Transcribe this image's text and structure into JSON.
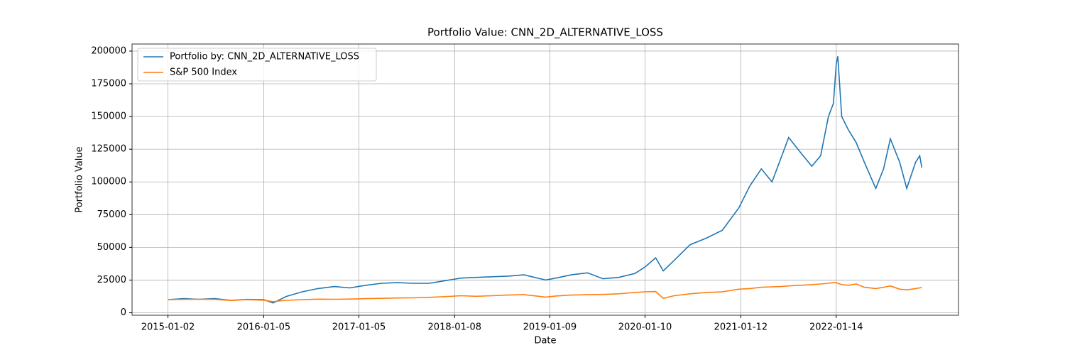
{
  "chart_data": {
    "type": "line",
    "title": "Portfolio Value: CNN_2D_ALTERNATIVE_LOSS",
    "xlabel": "Date",
    "ylabel": "Portfolio Value",
    "x": [
      "2015-01-02",
      "2015-03-02",
      "2015-05-01",
      "2015-07-01",
      "2015-09-01",
      "2015-11-02",
      "2016-01-05",
      "2016-02-10",
      "2016-04-01",
      "2016-06-01",
      "2016-08-01",
      "2016-10-03",
      "2016-12-01",
      "2017-02-01",
      "2017-04-03",
      "2017-06-01",
      "2017-08-01",
      "2017-10-02",
      "2017-12-01",
      "2018-02-01",
      "2018-04-02",
      "2018-06-01",
      "2018-08-01",
      "2018-10-01",
      "2018-12-24",
      "2019-02-01",
      "2019-04-01",
      "2019-06-03",
      "2019-08-01",
      "2019-10-01",
      "2019-12-02",
      "2020-01-10",
      "2020-02-20",
      "2020-03-20",
      "2020-05-01",
      "2020-07-01",
      "2020-09-01",
      "2020-11-02",
      "2021-01-04",
      "2021-02-16",
      "2021-04-01",
      "2021-05-12",
      "2021-06-15",
      "2021-07-15",
      "2021-09-01",
      "2021-10-12",
      "2021-11-15",
      "2021-12-15",
      "2022-01-03",
      "2022-01-14",
      "2022-01-20",
      "2022-02-04",
      "2022-03-01",
      "2022-04-01",
      "2022-05-02",
      "2022-06-15",
      "2022-07-15",
      "2022-08-10",
      "2022-09-15",
      "2022-10-12",
      "2022-11-15",
      "2022-12-01",
      "2022-12-09"
    ],
    "series": [
      {
        "name": "Portfolio by: CNN_2D_ALTERNATIVE_LOSS",
        "color": "#1f77b4",
        "values": [
          10000,
          10800,
          10300,
          10800,
          9500,
          10200,
          10000,
          7500,
          12500,
          16000,
          18500,
          20000,
          19000,
          21000,
          22500,
          23000,
          22500,
          22500,
          24500,
          26500,
          27000,
          27500,
          28000,
          29000,
          25000,
          26500,
          29000,
          30500,
          26000,
          27000,
          30000,
          35000,
          42000,
          32000,
          40000,
          52000,
          57000,
          63000,
          80000,
          97000,
          110000,
          100000,
          118000,
          134000,
          122000,
          112000,
          120000,
          150000,
          160000,
          190000,
          196000,
          150000,
          140000,
          130000,
          115000,
          95000,
          110000,
          133000,
          115000,
          95000,
          115000,
          120000,
          111000
        ]
      },
      {
        "name": "S&P 500 Index",
        "color": "#ff7f0e",
        "values": [
          10000,
          10200,
          10300,
          10200,
          9400,
          10000,
          9600,
          8500,
          9500,
          10000,
          10400,
          10300,
          10500,
          10800,
          11000,
          11300,
          11400,
          11800,
          12300,
          13000,
          12600,
          13000,
          13500,
          13900,
          12000,
          12800,
          13500,
          13800,
          14000,
          14500,
          15500,
          16000,
          16200,
          11000,
          13000,
          14500,
          15500,
          16000,
          18000,
          18500,
          19500,
          19800,
          20000,
          20500,
          21000,
          21500,
          22000,
          22500,
          23000,
          23000,
          22500,
          21500,
          21000,
          22000,
          19500,
          18500,
          19500,
          20500,
          18000,
          17500,
          18500,
          19000,
          19500
        ]
      }
    ],
    "xlim": [
      "2014-08-17",
      "2023-04-29"
    ],
    "xticks": [
      "2015-01-02",
      "2016-01-05",
      "2017-01-05",
      "2018-01-08",
      "2019-01-09",
      "2020-01-10",
      "2021-01-12",
      "2022-01-14"
    ],
    "ylim": [
      -1900,
      205400
    ],
    "yticks": [
      0,
      25000,
      50000,
      75000,
      100000,
      125000,
      150000,
      175000,
      200000
    ],
    "grid": true,
    "legend": "upper-left"
  }
}
